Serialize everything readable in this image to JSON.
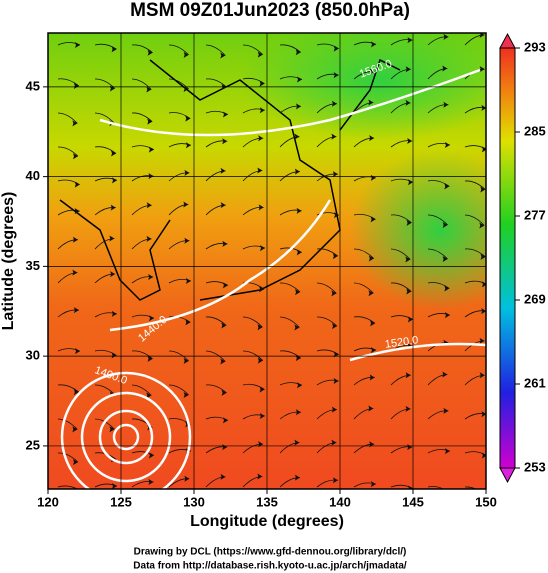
{
  "chart_data": {
    "type": "map",
    "title": "MSM 09Z01Jun2023 (850.0hPa)",
    "xlabel": "Longitude (degrees)",
    "ylabel": "Latitude  (degrees)",
    "xlim": [
      120,
      150
    ],
    "ylim": [
      22.6,
      48
    ],
    "xticks": [
      120,
      125,
      130,
      135,
      140,
      145,
      150
    ],
    "yticks": [
      25,
      30,
      35,
      40,
      45
    ],
    "grid": true,
    "colorbar": {
      "lim": [
        253,
        293
      ],
      "ticks": [
        253,
        261,
        269,
        277,
        285,
        293
      ]
    },
    "annotations": [
      "1400.0",
      "1440.0",
      "1520.0",
      "1560.0"
    ],
    "footer": [
      "Drawing by DCL (https://www.gfd-dennou.org/library/dcl/)",
      "Data from http://database.rish.kyoto-u.ac.jp/arch/jmadata/"
    ]
  }
}
